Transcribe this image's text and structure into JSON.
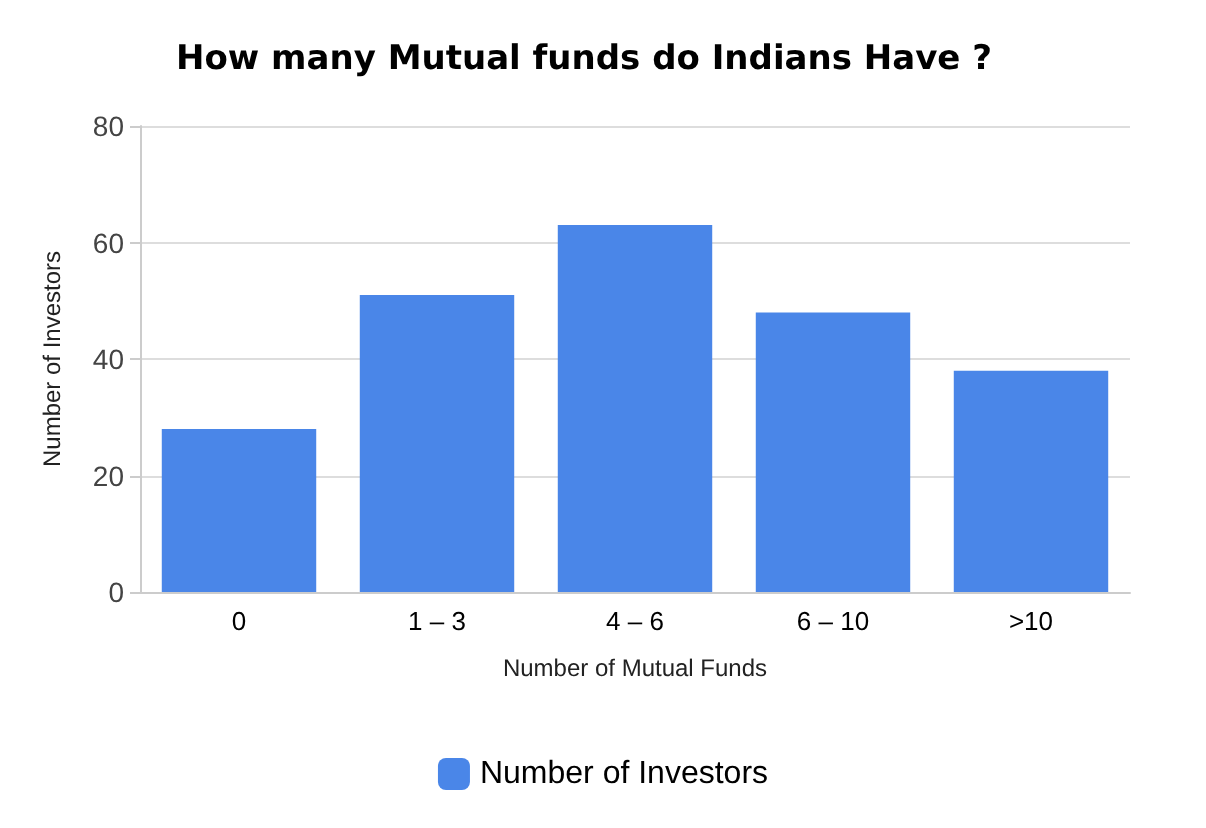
{
  "chart_data": {
    "type": "bar",
    "title": "How many Mutual funds do Indians Have ?",
    "xlabel": "Number of Mutual Funds",
    "ylabel": "Number of Investors",
    "categories": [
      "0",
      "1 – 3",
      "4 – 6",
      "6 – 10",
      ">10"
    ],
    "series": [
      {
        "name": "Number of Investors",
        "color": "#4a86e8",
        "values": [
          28,
          51,
          63,
          48,
          38
        ]
      }
    ],
    "ylim": [
      0,
      80
    ],
    "yticks": [
      0,
      20,
      40,
      60,
      80
    ],
    "grid": "y",
    "legend": "bottom"
  }
}
